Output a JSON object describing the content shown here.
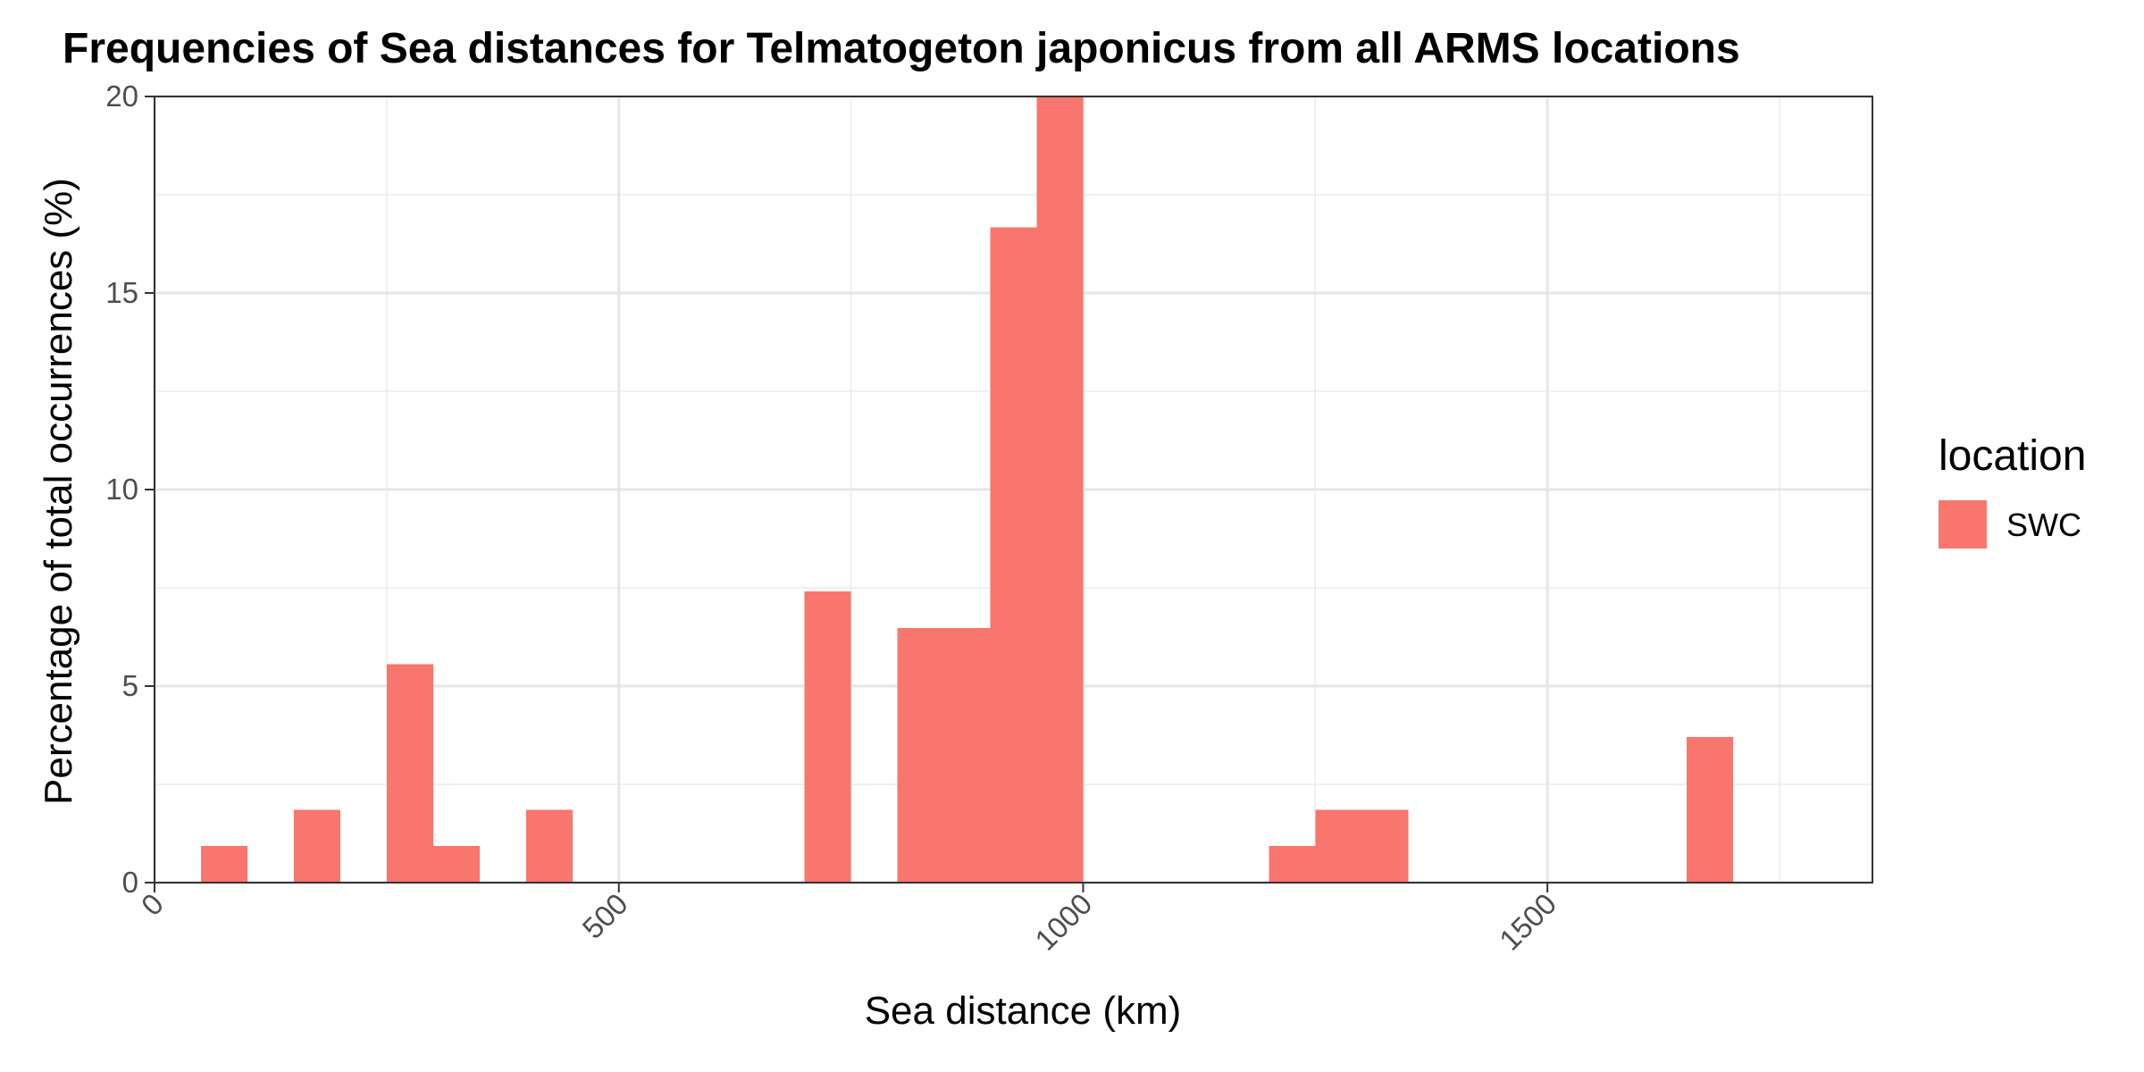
{
  "chart_data": {
    "type": "bar",
    "title": "Frequencies of Sea distances for Telmatogeton japonicus from all ARMS locations",
    "xlabel": "Sea distance (km)",
    "ylabel": "Percentage of total occurrences (%)",
    "xlim": [
      0,
      1850
    ],
    "ylim": [
      0,
      20
    ],
    "bin_width": 50,
    "x_ticks": [
      {
        "value": 0,
        "label": "0"
      },
      {
        "value": 500,
        "label": "500"
      },
      {
        "value": 1000,
        "label": "1000"
      },
      {
        "value": 1500,
        "label": "1500"
      }
    ],
    "y_ticks": [
      {
        "value": 0,
        "label": "0"
      },
      {
        "value": 5,
        "label": "5"
      },
      {
        "value": 10,
        "label": "10"
      },
      {
        "value": 15,
        "label": "15"
      },
      {
        "value": 20,
        "label": "20"
      }
    ],
    "grid": true,
    "legend": {
      "title": "location",
      "position": "right",
      "entries": [
        {
          "label": "SWC",
          "color": "#F8766D"
        }
      ]
    },
    "series": [
      {
        "name": "SWC",
        "color": "#F8766D",
        "bins": [
          {
            "x0": 50,
            "x1": 100,
            "value": 0.93
          },
          {
            "x0": 150,
            "x1": 200,
            "value": 1.85
          },
          {
            "x0": 250,
            "x1": 300,
            "value": 5.56
          },
          {
            "x0": 300,
            "x1": 350,
            "value": 0.93
          },
          {
            "x0": 400,
            "x1": 450,
            "value": 1.85
          },
          {
            "x0": 700,
            "x1": 750,
            "value": 7.41
          },
          {
            "x0": 800,
            "x1": 850,
            "value": 6.48
          },
          {
            "x0": 850,
            "x1": 900,
            "value": 6.48
          },
          {
            "x0": 900,
            "x1": 950,
            "value": 16.67
          },
          {
            "x0": 950,
            "x1": 1000,
            "value": 20.0
          },
          {
            "x0": 1200,
            "x1": 1250,
            "value": 0.93
          },
          {
            "x0": 1250,
            "x1": 1300,
            "value": 1.85
          },
          {
            "x0": 1300,
            "x1": 1350,
            "value": 1.85
          },
          {
            "x0": 1650,
            "x1": 1700,
            "value": 3.7
          }
        ]
      }
    ]
  }
}
